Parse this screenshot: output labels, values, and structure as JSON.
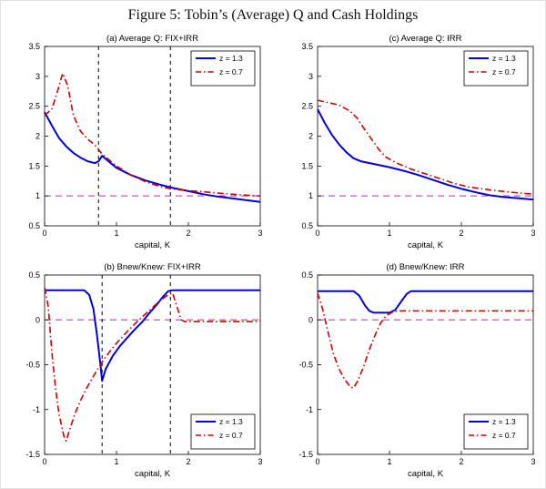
{
  "figure": {
    "title": "Figure 5: Tobin’s (Average) Q and Cash Holdings"
  },
  "colors": {
    "z13": "#0000e0",
    "z07": "#d40000",
    "reference": "#f000f0",
    "vline": "#000000"
  },
  "chart_data": [
    {
      "id": "a",
      "type": "line",
      "title": "(a) Average Q: FIX+IRR",
      "xlabel": "capital, K",
      "xlim": [
        0,
        3
      ],
      "ylim": [
        0.5,
        3.5
      ],
      "xticks": [
        0,
        1,
        2,
        3
      ],
      "yticks": [
        0.5,
        1,
        1.5,
        2,
        2.5,
        3,
        3.5
      ],
      "legend_position": "top-right",
      "hlines": [
        1
      ],
      "vlines": [
        0.75,
        1.75
      ],
      "series": [
        {
          "name": "z = 1.3",
          "style": "solid",
          "color": "#0000e0",
          "points": [
            [
              0,
              2.4
            ],
            [
              0.1,
              2.18
            ],
            [
              0.2,
              1.97
            ],
            [
              0.3,
              1.83
            ],
            [
              0.4,
              1.72
            ],
            [
              0.5,
              1.64
            ],
            [
              0.6,
              1.58
            ],
            [
              0.7,
              1.55
            ],
            [
              0.75,
              1.58
            ],
            [
              0.8,
              1.67
            ],
            [
              0.85,
              1.62
            ],
            [
              1.0,
              1.47
            ],
            [
              1.2,
              1.35
            ],
            [
              1.4,
              1.26
            ],
            [
              1.6,
              1.19
            ],
            [
              1.8,
              1.13
            ],
            [
              2.0,
              1.08
            ],
            [
              2.2,
              1.03
            ],
            [
              2.4,
              0.99
            ],
            [
              2.6,
              0.96
            ],
            [
              2.8,
              0.93
            ],
            [
              3.0,
              0.9
            ]
          ]
        },
        {
          "name": "z = 0.7",
          "style": "dashdot",
          "color": "#d40000",
          "points": [
            [
              0,
              2.35
            ],
            [
              0.1,
              2.45
            ],
            [
              0.18,
              2.75
            ],
            [
              0.25,
              3.05
            ],
            [
              0.32,
              2.85
            ],
            [
              0.4,
              2.35
            ],
            [
              0.5,
              2.08
            ],
            [
              0.6,
              1.95
            ],
            [
              0.7,
              1.85
            ],
            [
              0.8,
              1.7
            ],
            [
              0.9,
              1.6
            ],
            [
              1.0,
              1.5
            ],
            [
              1.2,
              1.35
            ],
            [
              1.4,
              1.24
            ],
            [
              1.6,
              1.16
            ],
            [
              1.75,
              1.12
            ],
            [
              1.9,
              1.1
            ],
            [
              2.1,
              1.08
            ],
            [
              2.4,
              1.05
            ],
            [
              2.7,
              1.02
            ],
            [
              3.0,
              1.0
            ]
          ]
        }
      ]
    },
    {
      "id": "c",
      "type": "line",
      "title": "(c) Average Q: IRR",
      "xlabel": "capital, K",
      "xlim": [
        0,
        3
      ],
      "ylim": [
        0.5,
        3.5
      ],
      "xticks": [
        0,
        1,
        2,
        3
      ],
      "yticks": [
        0.5,
        1,
        1.5,
        2,
        2.5,
        3,
        3.5
      ],
      "legend_position": "top-right",
      "hlines": [
        1
      ],
      "vlines": [],
      "series": [
        {
          "name": "z = 1.3",
          "style": "solid",
          "color": "#0000e0",
          "points": [
            [
              0,
              2.45
            ],
            [
              0.1,
              2.22
            ],
            [
              0.2,
              2.02
            ],
            [
              0.3,
              1.86
            ],
            [
              0.4,
              1.73
            ],
            [
              0.5,
              1.63
            ],
            [
              0.6,
              1.58
            ],
            [
              0.8,
              1.53
            ],
            [
              1.0,
              1.48
            ],
            [
              1.2,
              1.42
            ],
            [
              1.4,
              1.35
            ],
            [
              1.6,
              1.27
            ],
            [
              1.8,
              1.19
            ],
            [
              2.0,
              1.12
            ],
            [
              2.2,
              1.06
            ],
            [
              2.4,
              1.01
            ],
            [
              2.6,
              0.98
            ],
            [
              2.8,
              0.96
            ],
            [
              3.0,
              0.94
            ]
          ]
        },
        {
          "name": "z = 0.7",
          "style": "dashdot",
          "color": "#d40000",
          "points": [
            [
              0,
              2.6
            ],
            [
              0.15,
              2.56
            ],
            [
              0.3,
              2.52
            ],
            [
              0.45,
              2.42
            ],
            [
              0.55,
              2.3
            ],
            [
              0.65,
              2.12
            ],
            [
              0.75,
              1.95
            ],
            [
              0.85,
              1.78
            ],
            [
              0.95,
              1.65
            ],
            [
              1.1,
              1.55
            ],
            [
              1.3,
              1.45
            ],
            [
              1.5,
              1.37
            ],
            [
              1.7,
              1.29
            ],
            [
              1.9,
              1.21
            ],
            [
              2.1,
              1.15
            ],
            [
              2.4,
              1.1
            ],
            [
              2.7,
              1.06
            ],
            [
              3.0,
              1.03
            ]
          ]
        }
      ]
    },
    {
      "id": "b",
      "type": "line",
      "title": "(b) Bnew/Knew: FIX+IRR",
      "xlabel": "capital, K",
      "xlim": [
        0,
        3
      ],
      "ylim": [
        -1.5,
        0.5
      ],
      "xticks": [
        0,
        1,
        2,
        3
      ],
      "yticks": [
        -1.5,
        -1,
        -0.5,
        0,
        0.5
      ],
      "legend_position": "bottom-right",
      "hlines": [
        0
      ],
      "vlines": [
        0.8,
        1.75
      ],
      "series": [
        {
          "name": "z = 1.3",
          "style": "solid",
          "color": "#0000e0",
          "points": [
            [
              0,
              0.33
            ],
            [
              0.55,
              0.33
            ],
            [
              0.62,
              0.28
            ],
            [
              0.68,
              0.12
            ],
            [
              0.73,
              -0.18
            ],
            [
              0.78,
              -0.52
            ],
            [
              0.8,
              -0.68
            ],
            [
              0.85,
              -0.55
            ],
            [
              0.95,
              -0.4
            ],
            [
              1.05,
              -0.29
            ],
            [
              1.15,
              -0.2
            ],
            [
              1.25,
              -0.11
            ],
            [
              1.35,
              -0.03
            ],
            [
              1.45,
              0.07
            ],
            [
              1.55,
              0.16
            ],
            [
              1.65,
              0.26
            ],
            [
              1.72,
              0.32
            ],
            [
              1.78,
              0.33
            ],
            [
              3.0,
              0.33
            ]
          ]
        },
        {
          "name": "z = 0.7",
          "style": "dashdot",
          "color": "#d40000",
          "points": [
            [
              0,
              0.36
            ],
            [
              0.05,
              0.15
            ],
            [
              0.1,
              -0.35
            ],
            [
              0.15,
              -0.75
            ],
            [
              0.2,
              -1.05
            ],
            [
              0.27,
              -1.3
            ],
            [
              0.3,
              -1.35
            ],
            [
              0.35,
              -1.22
            ],
            [
              0.42,
              -1.05
            ],
            [
              0.5,
              -0.9
            ],
            [
              0.6,
              -0.74
            ],
            [
              0.7,
              -0.6
            ],
            [
              0.8,
              -0.47
            ],
            [
              0.9,
              -0.36
            ],
            [
              1.0,
              -0.26
            ],
            [
              1.15,
              -0.13
            ],
            [
              1.3,
              -0.01
            ],
            [
              1.45,
              0.1
            ],
            [
              1.6,
              0.21
            ],
            [
              1.7,
              0.27
            ],
            [
              1.78,
              0.3
            ],
            [
              1.84,
              0.15
            ],
            [
              1.9,
              0.0
            ],
            [
              1.95,
              -0.02
            ],
            [
              3.0,
              -0.02
            ]
          ]
        }
      ]
    },
    {
      "id": "d",
      "type": "line",
      "title": "(d) Bnew/Knew: IRR",
      "xlabel": "capital, K",
      "xlim": [
        0,
        3
      ],
      "ylim": [
        -1.5,
        0.5
      ],
      "xticks": [
        0,
        1,
        2,
        3
      ],
      "yticks": [
        -1.5,
        -1,
        -0.5,
        0,
        0.5
      ],
      "legend_position": "bottom-right",
      "hlines": [
        0
      ],
      "vlines": [],
      "series": [
        {
          "name": "z = 1.3",
          "style": "solid",
          "color": "#0000e0",
          "points": [
            [
              0,
              0.32
            ],
            [
              0.5,
              0.32
            ],
            [
              0.58,
              0.27
            ],
            [
              0.66,
              0.16
            ],
            [
              0.72,
              0.1
            ],
            [
              0.78,
              0.08
            ],
            [
              1.0,
              0.08
            ],
            [
              1.08,
              0.11
            ],
            [
              1.16,
              0.2
            ],
            [
              1.24,
              0.29
            ],
            [
              1.3,
              0.32
            ],
            [
              3.0,
              0.32
            ]
          ]
        },
        {
          "name": "z = 0.7",
          "style": "dashdot",
          "color": "#d40000",
          "points": [
            [
              0,
              0.3
            ],
            [
              0.07,
              0.12
            ],
            [
              0.14,
              -0.12
            ],
            [
              0.22,
              -0.38
            ],
            [
              0.3,
              -0.55
            ],
            [
              0.38,
              -0.67
            ],
            [
              0.46,
              -0.75
            ],
            [
              0.5,
              -0.76
            ],
            [
              0.56,
              -0.68
            ],
            [
              0.64,
              -0.52
            ],
            [
              0.72,
              -0.33
            ],
            [
              0.8,
              -0.17
            ],
            [
              0.88,
              -0.03
            ],
            [
              0.96,
              0.05
            ],
            [
              1.05,
              0.09
            ],
            [
              1.15,
              0.1
            ],
            [
              3.0,
              0.1
            ]
          ]
        }
      ]
    }
  ]
}
